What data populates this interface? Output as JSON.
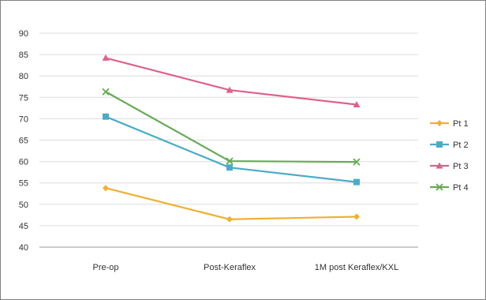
{
  "chart_data": {
    "type": "line",
    "title": "",
    "xlabel": "",
    "ylabel": "",
    "categories": [
      "Pre-op",
      "Post-Keraflex",
      "1M post Keraflex/KXL"
    ],
    "ylim": [
      40,
      90
    ],
    "yticks": [
      40,
      45,
      50,
      55,
      60,
      65,
      70,
      75,
      80,
      85,
      90
    ],
    "grid": true,
    "legend_position": "right",
    "series": [
      {
        "name": "Pt 1",
        "values": [
          53.8,
          46.5,
          47.1
        ],
        "color": "#f0b030",
        "marker": "diamond"
      },
      {
        "name": "Pt 2",
        "values": [
          70.5,
          58.6,
          55.2
        ],
        "color": "#4bacc6",
        "marker": "square"
      },
      {
        "name": "Pt 3",
        "values": [
          84.2,
          76.7,
          73.3
        ],
        "color": "#e0608a",
        "marker": "triangle"
      },
      {
        "name": "Pt 4",
        "values": [
          76.3,
          60.1,
          59.9
        ],
        "color": "#66aa55",
        "marker": "x"
      }
    ]
  }
}
